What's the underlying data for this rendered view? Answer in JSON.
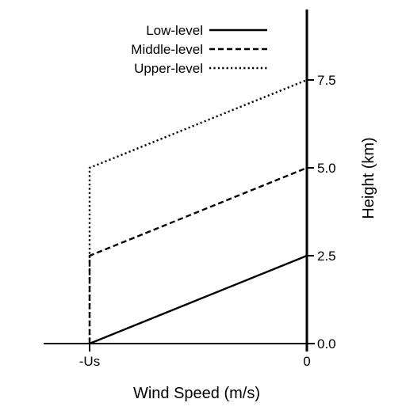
{
  "chart_data": {
    "type": "line",
    "xlabel": "Wind Speed (m/s)",
    "ylabel": "Height (km)",
    "x_ticks": [
      {
        "value": -1,
        "label": "-Us"
      },
      {
        "value": 0,
        "label": "0"
      }
    ],
    "y_ticks": [
      {
        "value": 0,
        "label": "0.0"
      },
      {
        "value": 2.5,
        "label": "2.5"
      },
      {
        "value": 5,
        "label": "5.0"
      },
      {
        "value": 7.5,
        "label": "7.5"
      }
    ],
    "xlim": [
      -1.54,
      0
    ],
    "ylim": [
      0,
      9.4
    ],
    "legend_position": "top-left",
    "grid": false,
    "series": [
      {
        "name": "Low-level",
        "style": "solid",
        "color": "#000000",
        "points": [
          {
            "x": -1,
            "y": 0
          },
          {
            "x": 0,
            "y": 2.5
          }
        ]
      },
      {
        "name": "Middle-level",
        "style": "dashed",
        "color": "#000000",
        "points": [
          {
            "x": -1,
            "y": 0
          },
          {
            "x": -1,
            "y": 2.5
          },
          {
            "x": 0,
            "y": 5
          }
        ]
      },
      {
        "name": "Upper-level",
        "style": "dotted",
        "color": "#000000",
        "points": [
          {
            "x": -1,
            "y": 0
          },
          {
            "x": -1,
            "y": 5
          },
          {
            "x": 0,
            "y": 7.5
          }
        ]
      }
    ]
  }
}
